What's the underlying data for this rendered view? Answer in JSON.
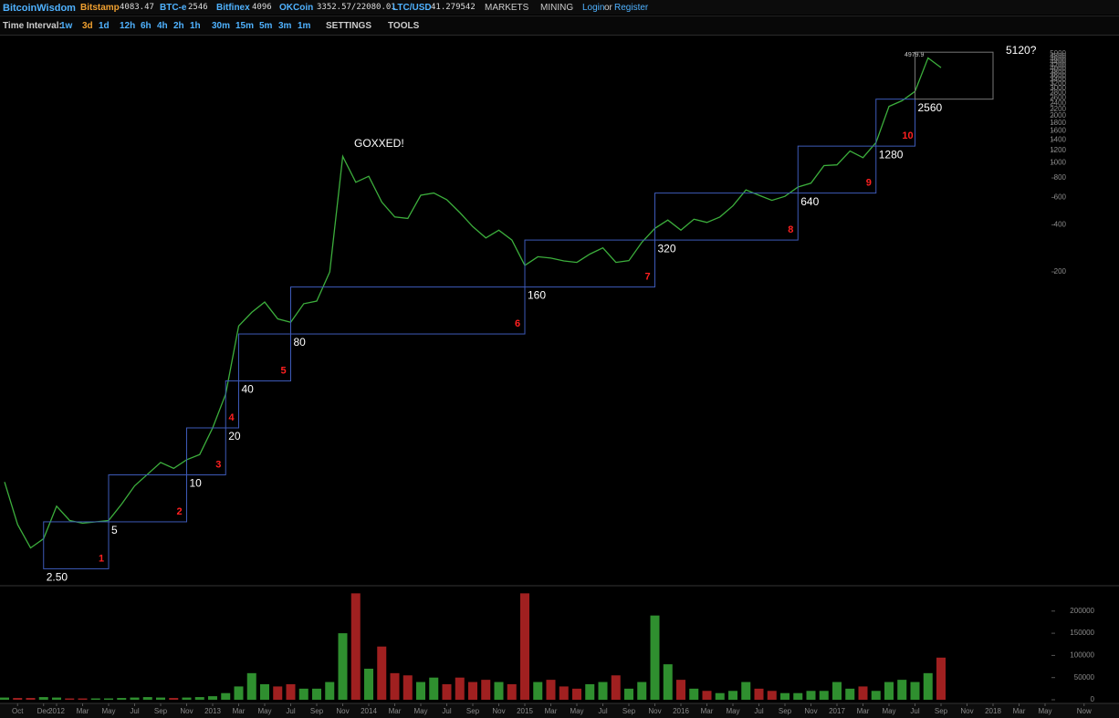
{
  "header": {
    "logo": "BitcoinWisdom",
    "tickers": [
      {
        "name": "Bitstamp",
        "price": "4083.47"
      },
      {
        "name": "BTC-e",
        "price": "2546"
      },
      {
        "name": "Bitfinex",
        "price": "4096"
      },
      {
        "name": "OKCoin",
        "price": "3352.57/22080.01"
      },
      {
        "name": "LTC/USD",
        "price": "41.279542"
      }
    ],
    "menus": [
      "MARKETS",
      "MINING"
    ],
    "login": "Login",
    "or": "or",
    "register": "Register"
  },
  "toolbar": {
    "label": "Time Interval:",
    "intervals": [
      "1w",
      "3d",
      "1d",
      "12h",
      "6h",
      "4h",
      "2h",
      "1h",
      "30m",
      "15m",
      "5m",
      "3m",
      "1m"
    ],
    "menus": [
      "SETTINGS",
      "TOOLS"
    ]
  },
  "chart_data": [
    {
      "type": "line",
      "log_scale": true,
      "x": [
        "2011-09",
        "2011-10",
        "2011-11",
        "2011-12",
        "2012-01",
        "2012-02",
        "2012-03",
        "2012-04",
        "2012-05",
        "2012-06",
        "2012-07",
        "2012-08",
        "2012-09",
        "2012-10",
        "2012-11",
        "2012-12",
        "2013-01",
        "2013-02",
        "2013-03",
        "2013-04",
        "2013-05",
        "2013-06",
        "2013-07",
        "2013-08",
        "2013-09",
        "2013-10",
        "2013-11",
        "2013-12",
        "2014-01",
        "2014-02",
        "2014-03",
        "2014-04",
        "2014-05",
        "2014-06",
        "2014-07",
        "2014-08",
        "2014-09",
        "2014-10",
        "2014-11",
        "2014-12",
        "2015-01",
        "2015-02",
        "2015-03",
        "2015-04",
        "2015-05",
        "2015-06",
        "2015-07",
        "2015-08",
        "2015-09",
        "2015-10",
        "2015-11",
        "2015-12",
        "2016-01",
        "2016-02",
        "2016-03",
        "2016-04",
        "2016-05",
        "2016-06",
        "2016-07",
        "2016-08",
        "2016-09",
        "2016-10",
        "2016-11",
        "2016-12",
        "2017-01",
        "2017-02",
        "2017-03",
        "2017-04",
        "2017-05",
        "2017-06",
        "2017-07",
        "2017-08",
        "2017-09"
      ],
      "series": [
        {
          "color": "#3cae3c",
          "values": [
            9,
            4.8,
            3.4,
            3.9,
            6.3,
            5.1,
            4.9,
            5.0,
            5.1,
            6.5,
            8.5,
            10.1,
            12,
            11,
            12.5,
            13.5,
            20,
            33,
            90,
            110,
            128,
            100,
            95,
            125,
            130,
            200,
            1100,
            750,
            820,
            560,
            450,
            440,
            620,
            640,
            580,
            480,
            390,
            330,
            370,
            320,
            220,
            250,
            245,
            235,
            230,
            260,
            285,
            230,
            236,
            310,
            380,
            430,
            370,
            435,
            415,
            450,
            530,
            670,
            620,
            575,
            610,
            700,
            740,
            960,
            970,
            1190,
            1080,
            1350,
            2300,
            2500,
            2870,
            4700,
            4080
          ]
        }
      ],
      "xlim": [
        "2011-09",
        "2018-09"
      ],
      "ylim": [
        2,
        6630
      ],
      "yticks": [
        200,
        400,
        600,
        800,
        1000,
        1200,
        1400,
        1600,
        1800,
        2000,
        2200,
        2400,
        2600,
        2800,
        3000,
        3200,
        3400,
        3600,
        3800,
        4000,
        4200,
        4400,
        4600,
        4800,
        5000
      ],
      "boxes": [
        {
          "number": "1",
          "label": "2.50",
          "low": 2.5,
          "high": 5,
          "start": "2011-12",
          "end": "2012-05"
        },
        {
          "number": "2",
          "label": "5",
          "low": 5,
          "high": 10,
          "start": "2012-05",
          "end": "2012-11"
        },
        {
          "number": "3",
          "label": "10",
          "low": 10,
          "high": 20,
          "start": "2012-11",
          "end": "2013-02"
        },
        {
          "number": "4",
          "label": "20",
          "low": 20,
          "high": 40,
          "start": "2013-02",
          "end": "2013-03"
        },
        {
          "number": "5",
          "label": "40",
          "low": 40,
          "high": 80,
          "start": "2013-03",
          "end": "2013-07"
        },
        {
          "number": "6",
          "label": "80",
          "low": 80,
          "high": 160,
          "start": "2013-07",
          "end": "2015-01"
        },
        {
          "number": "7",
          "label": "160",
          "low": 160,
          "high": 320,
          "start": "2015-01",
          "end": "2015-11"
        },
        {
          "number": "8",
          "label": "320",
          "low": 320,
          "high": 640,
          "start": "2015-11",
          "end": "2016-10"
        },
        {
          "number": "9",
          "label": "640",
          "low": 640,
          "high": 1280,
          "start": "2016-10",
          "end": "2017-04"
        },
        {
          "number": "10",
          "label": "1280",
          "low": 1280,
          "high": 2560,
          "start": "2017-04",
          "end": "2017-07"
        },
        {
          "label": "2560",
          "low": 2560,
          "high": 5120,
          "start": "2017-07",
          "end": "2018-01"
        }
      ],
      "annotations": [
        "GOXXED!",
        "5120?"
      ],
      "last_price": "4979.9"
    },
    {
      "type": "bar",
      "x": [
        "2011-09",
        "2011-10",
        "2011-11",
        "2011-12",
        "2012-01",
        "2012-02",
        "2012-03",
        "2012-04",
        "2012-05",
        "2012-06",
        "2012-07",
        "2012-08",
        "2012-09",
        "2012-10",
        "2012-11",
        "2012-12",
        "2013-01",
        "2013-02",
        "2013-03",
        "2013-04",
        "2013-05",
        "2013-06",
        "2013-07",
        "2013-08",
        "2013-09",
        "2013-10",
        "2013-11",
        "2013-12",
        "2014-01",
        "2014-02",
        "2014-03",
        "2014-04",
        "2014-05",
        "2014-06",
        "2014-07",
        "2014-08",
        "2014-09",
        "2014-10",
        "2014-11",
        "2014-12",
        "2015-01",
        "2015-02",
        "2015-03",
        "2015-04",
        "2015-05",
        "2015-06",
        "2015-07",
        "2015-08",
        "2015-09",
        "2015-10",
        "2015-11",
        "2015-12",
        "2016-01",
        "2016-02",
        "2016-03",
        "2016-04",
        "2016-05",
        "2016-06",
        "2016-07",
        "2016-08",
        "2016-09",
        "2016-10",
        "2016-11",
        "2016-12",
        "2017-01",
        "2017-02",
        "2017-03",
        "2017-04",
        "2017-05",
        "2017-06",
        "2017-07",
        "2017-08",
        "2017-09"
      ],
      "values": [
        5000,
        4000,
        4000,
        6000,
        5000,
        3000,
        3000,
        3000,
        3000,
        4000,
        5000,
        6000,
        5000,
        4000,
        5000,
        6000,
        8000,
        15000,
        30000,
        60000,
        35000,
        30000,
        35000,
        25000,
        25000,
        40000,
        150000,
        240000,
        70000,
        120000,
        60000,
        55000,
        40000,
        50000,
        35000,
        50000,
        40000,
        45000,
        40000,
        35000,
        240000,
        40000,
        45000,
        30000,
        25000,
        35000,
        40000,
        55000,
        25000,
        40000,
        190000,
        80000,
        45000,
        25000,
        20000,
        15000,
        20000,
        40000,
        25000,
        20000,
        15000,
        15000,
        20000,
        20000,
        40000,
        25000,
        30000,
        20000,
        40000,
        45000,
        40000,
        60000,
        95000
      ],
      "up_color": "#2f8f2f",
      "down_color": "#a02020",
      "xlim": [
        "2011-09",
        "2018-09"
      ],
      "ylim": [
        0,
        250000
      ],
      "yticks": [
        0,
        50000,
        100000,
        150000,
        200000
      ],
      "xticks": [
        {
          "value": "2011-10",
          "label": "Oct"
        },
        {
          "value": "2011-12",
          "label": "Dec"
        },
        {
          "value": "2012-01",
          "label": "2012"
        },
        {
          "value": "2012-03",
          "label": "Mar"
        },
        {
          "value": "2012-05",
          "label": "May"
        },
        {
          "value": "2012-07",
          "label": "Jul"
        },
        {
          "value": "2012-09",
          "label": "Sep"
        },
        {
          "value": "2012-11",
          "label": "Nov"
        },
        {
          "value": "2013-01",
          "label": "2013"
        },
        {
          "value": "2013-03",
          "label": "Mar"
        },
        {
          "value": "2013-05",
          "label": "May"
        },
        {
          "value": "2013-07",
          "label": "Jul"
        },
        {
          "value": "2013-09",
          "label": "Sep"
        },
        {
          "value": "2013-11",
          "label": "Nov"
        },
        {
          "value": "2014-01",
          "label": "2014"
        },
        {
          "value": "2014-03",
          "label": "Mar"
        },
        {
          "value": "2014-05",
          "label": "May"
        },
        {
          "value": "2014-07",
          "label": "Jul"
        },
        {
          "value": "2014-09",
          "label": "Sep"
        },
        {
          "value": "2014-11",
          "label": "Nov"
        },
        {
          "value": "2015-01",
          "label": "2015"
        },
        {
          "value": "2015-03",
          "label": "Mar"
        },
        {
          "value": "2015-05",
          "label": "May"
        },
        {
          "value": "2015-07",
          "label": "Jul"
        },
        {
          "value": "2015-09",
          "label": "Sep"
        },
        {
          "value": "2015-11",
          "label": "Nov"
        },
        {
          "value": "2016-01",
          "label": "2016"
        },
        {
          "value": "2016-03",
          "label": "Mar"
        },
        {
          "value": "2016-05",
          "label": "May"
        },
        {
          "value": "2016-07",
          "label": "Jul"
        },
        {
          "value": "2016-09",
          "label": "Sep"
        },
        {
          "value": "2016-11",
          "label": "Nov"
        },
        {
          "value": "2017-01",
          "label": "2017"
        },
        {
          "value": "2017-03",
          "label": "Mar"
        },
        {
          "value": "2017-05",
          "label": "May"
        },
        {
          "value": "2017-07",
          "label": "Jul"
        },
        {
          "value": "2017-09",
          "label": "Sep"
        },
        {
          "value": "2017-11",
          "label": "Nov"
        },
        {
          "value": "2018-01",
          "label": "2018"
        },
        {
          "value": "2018-03",
          "label": "Mar"
        },
        {
          "value": "2018-05",
          "label": "May"
        },
        {
          "value": "2018-08",
          "label": "Now"
        }
      ]
    }
  ]
}
